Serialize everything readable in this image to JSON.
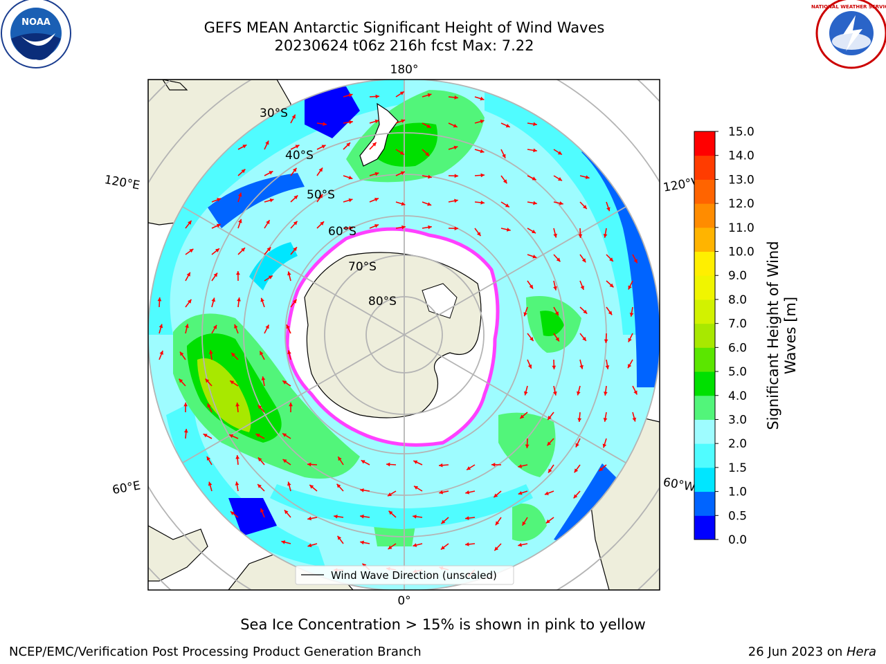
{
  "title": {
    "line1": "GEFS MEAN Antarctic Significant Height of Wind Waves",
    "line2": "20230624 t06z 216h fcst   Max: 7.22"
  },
  "logos": {
    "noaa": "NOAA",
    "nws": "NATIONAL WEATHER SERVICE"
  },
  "longitude_labels": {
    "top": "180°",
    "bottom": "0°",
    "upper_left": "120°E",
    "upper_right": "120°W",
    "lower_left": "60°E",
    "lower_right": "60°W"
  },
  "latitude_labels": [
    "30°S",
    "40°S",
    "50°S",
    "60°S",
    "70°S",
    "80°S"
  ],
  "legend": {
    "label": "Wind Wave Direction (unscaled)"
  },
  "colorbar": {
    "label": "Significant Height of Wind Waves [m]",
    "ticks": [
      "0.0",
      "0.5",
      "1.0",
      "1.5",
      "2.0",
      "3.0",
      "4.0",
      "5.0",
      "6.0",
      "7.0",
      "8.0",
      "9.0",
      "10.0",
      "11.0",
      "12.0",
      "13.0",
      "14.0",
      "15.0"
    ],
    "colors": [
      "#0000ff",
      "#0064ff",
      "#00e6ff",
      "#50fcff",
      "#9efcff",
      "#52f57a",
      "#00e000",
      "#5be600",
      "#a8e800",
      "#d2f200",
      "#f0f500",
      "#ffef00",
      "#ffb400",
      "#ff8c00",
      "#ff6400",
      "#ff3c00",
      "#ff0000"
    ]
  },
  "map_colors": {
    "land": "#eeeedc",
    "ice": "#ffffff",
    "ice_edge": "#ff40ff",
    "arrow": "#ff0000",
    "grid": "#b4b4b4"
  },
  "sea_ice_note": "Sea Ice Concentration > 15% is shown in pink to yellow",
  "footer": {
    "credit": "NCEP/EMC/Verification Post Processing Product Generation Branch",
    "date_prefix": "26 Jun 2023 on ",
    "machine": "Hera"
  }
}
